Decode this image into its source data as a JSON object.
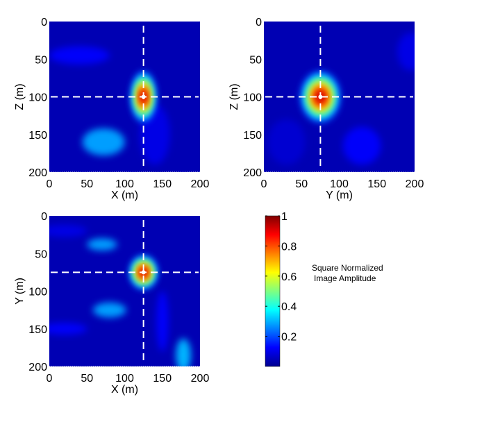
{
  "chart_data": [
    {
      "type": "heatmap",
      "xlabel": "X (m)",
      "ylabel": "Z (m)",
      "xlim": [
        0,
        200
      ],
      "ylim": [
        0,
        200
      ],
      "y_reversed": true,
      "xticks": [
        "0",
        "50",
        "100",
        "150",
        "200"
      ],
      "yticks": [
        "0",
        "50",
        "100",
        "150",
        "200"
      ],
      "peak": {
        "x": 125,
        "y": 100,
        "value": 1
      },
      "crosshair": {
        "x": 125,
        "y": 100
      },
      "features": [
        {
          "x": 125,
          "y": 100,
          "rx": 9,
          "ry": 18,
          "value": 1
        },
        {
          "x": 72,
          "y": 160,
          "rx": 28,
          "ry": 18,
          "value": 0.28
        },
        {
          "x": 40,
          "y": 45,
          "rx": 40,
          "ry": 12,
          "value": 0.12
        },
        {
          "x": 140,
          "y": 150,
          "rx": 20,
          "ry": 40,
          "value": 0.1
        }
      ]
    },
    {
      "type": "heatmap",
      "xlabel": "Y (m)",
      "ylabel": "Z (m)",
      "xlim": [
        0,
        200
      ],
      "ylim": [
        0,
        200
      ],
      "y_reversed": true,
      "xticks": [
        "0",
        "50",
        "100",
        "150",
        "200"
      ],
      "yticks": [
        "0",
        "50",
        "100",
        "150",
        "200"
      ],
      "peak": {
        "x": 75,
        "y": 100,
        "value": 1
      },
      "crosshair": {
        "x": 75,
        "y": 100
      },
      "features": [
        {
          "x": 75,
          "y": 100,
          "rx": 14,
          "ry": 18,
          "value": 1
        },
        {
          "x": 130,
          "y": 165,
          "rx": 25,
          "ry": 25,
          "value": 0.12
        },
        {
          "x": 195,
          "y": 40,
          "rx": 18,
          "ry": 25,
          "value": 0.1
        },
        {
          "x": 30,
          "y": 160,
          "rx": 25,
          "ry": 30,
          "value": 0.08
        }
      ]
    },
    {
      "type": "heatmap",
      "xlabel": "X (m)",
      "ylabel": "Y (m)",
      "xlim": [
        0,
        200
      ],
      "ylim": [
        0,
        200
      ],
      "y_reversed": true,
      "xticks": [
        "0",
        "50",
        "100",
        "150",
        "200"
      ],
      "yticks": [
        "0",
        "50",
        "100",
        "150",
        "200"
      ],
      "peak": {
        "x": 125,
        "y": 75,
        "value": 1
      },
      "crosshair": {
        "x": 125,
        "y": 75
      },
      "features": [
        {
          "x": 125,
          "y": 75,
          "rx": 10,
          "ry": 12,
          "value": 1
        },
        {
          "x": 70,
          "y": 38,
          "rx": 20,
          "ry": 8,
          "value": 0.28
        },
        {
          "x": 80,
          "y": 125,
          "rx": 22,
          "ry": 10,
          "value": 0.28
        },
        {
          "x": 178,
          "y": 185,
          "rx": 10,
          "ry": 22,
          "value": 0.3
        },
        {
          "x": 150,
          "y": 140,
          "rx": 8,
          "ry": 40,
          "value": 0.12
        },
        {
          "x": 20,
          "y": 150,
          "rx": 30,
          "ry": 8,
          "value": 0.12
        },
        {
          "x": 20,
          "y": 20,
          "rx": 30,
          "ry": 8,
          "value": 0.1
        }
      ]
    }
  ],
  "colorbar": {
    "label_line1": "Square Normalized",
    "label_line2": "Image Amplitude",
    "ticks": [
      "0.2",
      "0.4",
      "0.6",
      "0.8",
      "1"
    ],
    "tick_values": [
      0.2,
      0.4,
      0.6,
      0.8,
      1
    ],
    "range": [
      0,
      1
    ],
    "colormap": "jet"
  }
}
